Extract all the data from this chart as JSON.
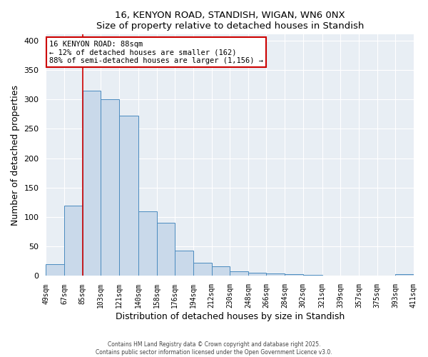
{
  "title": "16, KENYON ROAD, STANDISH, WIGAN, WN6 0NX",
  "subtitle": "Size of property relative to detached houses in Standish",
  "xlabel": "Distribution of detached houses by size in Standish",
  "ylabel": "Number of detached properties",
  "bar_edges": [
    49,
    67,
    85,
    103,
    121,
    140,
    158,
    176,
    194,
    212,
    230,
    248,
    266,
    284,
    302,
    321,
    339,
    357,
    375,
    393,
    411
  ],
  "bar_heights": [
    20,
    120,
    315,
    300,
    272,
    110,
    90,
    43,
    22,
    16,
    8,
    5,
    4,
    3,
    2,
    0,
    0,
    1,
    0,
    3
  ],
  "bar_color": "#c9d9ea",
  "bar_edge_color": "#4a8bbf",
  "vline_x": 85,
  "vline_color": "#cc0000",
  "annotation_text": "16 KENYON ROAD: 88sqm\n← 12% of detached houses are smaller (162)\n88% of semi-detached houses are larger (1,156) →",
  "ylim": [
    0,
    410
  ],
  "xlim": [
    49,
    411
  ],
  "yticks": [
    0,
    50,
    100,
    150,
    200,
    250,
    300,
    350,
    400
  ],
  "tick_labels": [
    "49sqm",
    "67sqm",
    "85sqm",
    "103sqm",
    "121sqm",
    "140sqm",
    "158sqm",
    "176sqm",
    "194sqm",
    "212sqm",
    "230sqm",
    "248sqm",
    "266sqm",
    "284sqm",
    "302sqm",
    "321sqm",
    "339sqm",
    "357sqm",
    "375sqm",
    "393sqm",
    "411sqm"
  ],
  "background_color": "#e8eef4",
  "grid_color": "#ffffff",
  "footer_line1": "Contains HM Land Registry data © Crown copyright and database right 2025.",
  "footer_line2": "Contains public sector information licensed under the Open Government Licence v3.0."
}
